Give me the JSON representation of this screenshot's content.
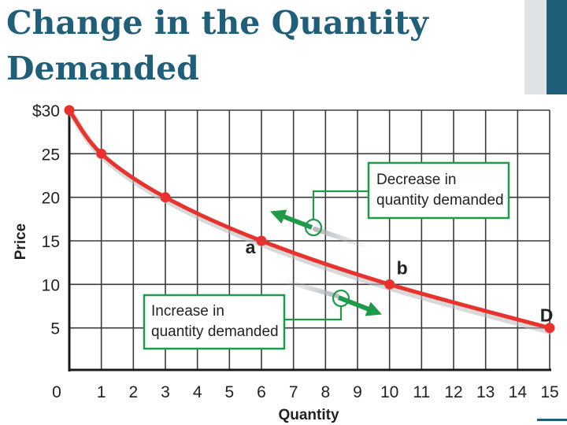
{
  "slide": {
    "title_line1": "Change in the Quantity",
    "title_line2": "Demanded",
    "accent_color": "#1f5f7a"
  },
  "chart_data": {
    "type": "line",
    "title": "",
    "xlabel": "Quantity",
    "ylabel": "Price",
    "x_ticks": [
      "0",
      "1",
      "2",
      "3",
      "4",
      "5",
      "6",
      "7",
      "8",
      "9",
      "10",
      "11",
      "12",
      "13",
      "14",
      "15"
    ],
    "y_ticks": [
      "5",
      "10",
      "15",
      "20",
      "25",
      "$30"
    ],
    "xlim": [
      0,
      15
    ],
    "ylim": [
      0,
      30
    ],
    "grid": true,
    "series": [
      {
        "name": "D",
        "color": "#e8322d",
        "points": [
          {
            "x": 0,
            "y": 30
          },
          {
            "x": 1,
            "y": 25
          },
          {
            "x": 3,
            "y": 20
          },
          {
            "x": 6,
            "y": 15
          },
          {
            "x": 10,
            "y": 10
          },
          {
            "x": 15,
            "y": 5
          }
        ]
      }
    ],
    "point_labels": [
      {
        "text": "a",
        "x": 6,
        "y": 15
      },
      {
        "text": "b",
        "x": 10,
        "y": 10
      },
      {
        "text": "D",
        "x": 15,
        "y": 5
      }
    ],
    "annotations": [
      {
        "text_lines": [
          "Decrease in",
          "quantity demanded"
        ],
        "arrow_direction": "toward lower quantity",
        "color": "#1e9a48"
      },
      {
        "text_lines": [
          "Increase in",
          "quantity demanded"
        ],
        "arrow_direction": "toward higher quantity",
        "color": "#1e9a48"
      }
    ]
  }
}
